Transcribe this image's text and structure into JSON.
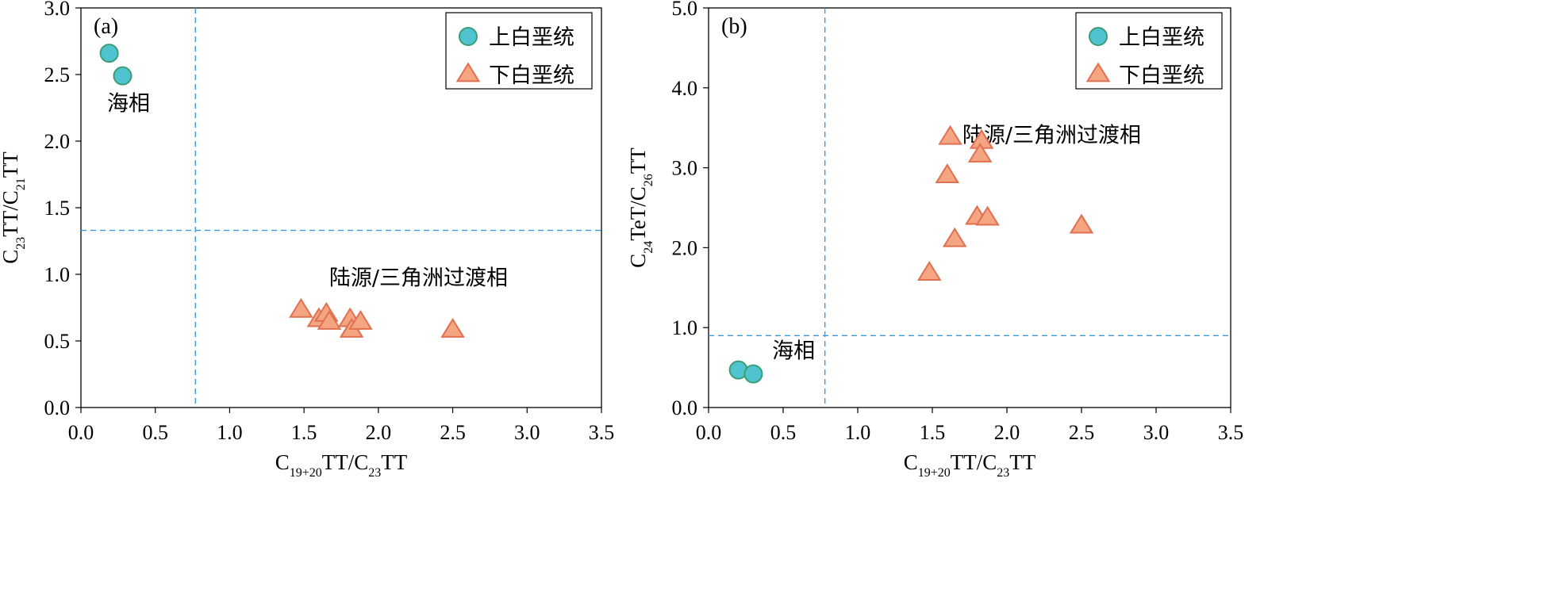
{
  "chart_data": [
    {
      "type": "scatter",
      "panel_label": "(a)",
      "xlabel": {
        "main": "C",
        "sub1": "19+20",
        "mid": "TT/C",
        "sub2": "23",
        "tail": "TT"
      },
      "ylabel": {
        "main": "C",
        "sub1": "23",
        "mid": "TT/C",
        "sub2": "21",
        "tail": "TT"
      },
      "xlim": [
        0,
        3.5
      ],
      "ylim": [
        0,
        3.0
      ],
      "xticks": [
        "0.0",
        "0.5",
        "1.0",
        "1.5",
        "2.0",
        "2.5",
        "3.0",
        "3.5"
      ],
      "yticks": [
        "0.0",
        "0.5",
        "1.0",
        "1.5",
        "2.0",
        "2.5",
        "3.0"
      ],
      "xtick_values": [
        0,
        0.5,
        1.0,
        1.5,
        2.0,
        2.5,
        3.0,
        3.5
      ],
      "ytick_values": [
        0,
        0.5,
        1.0,
        1.5,
        2.0,
        2.5,
        3.0
      ],
      "threshold_x": 0.77,
      "threshold_y": 1.33,
      "legend_position": "top-right",
      "series": [
        {
          "name": "上白垩统",
          "marker": "circle",
          "color": "#4fc3cf",
          "edge": "#3a9e74",
          "points": [
            [
              0.19,
              2.66
            ],
            [
              0.28,
              2.49
            ]
          ]
        },
        {
          "name": "下白垩统",
          "marker": "triangle",
          "color": "#f4a582",
          "edge": "#e07050",
          "points": [
            [
              1.48,
              0.73
            ],
            [
              1.6,
              0.66
            ],
            [
              1.65,
              0.7
            ],
            [
              1.67,
              0.64
            ],
            [
              1.81,
              0.66
            ],
            [
              1.82,
              0.58
            ],
            [
              1.88,
              0.64
            ],
            [
              2.5,
              0.58
            ]
          ]
        }
      ],
      "annotations": [
        {
          "text": "海相",
          "x": 0.32,
          "y": 2.23
        },
        {
          "text": "陆源/三角洲过渡相",
          "x": 2.27,
          "y": 0.92
        }
      ]
    },
    {
      "type": "scatter",
      "panel_label": "(b)",
      "xlabel": {
        "main": "C",
        "sub1": "19+20",
        "mid": "TT/C",
        "sub2": "23",
        "tail": "TT"
      },
      "ylabel": {
        "main": "C",
        "sub1": "24",
        "mid": "TeT/C",
        "sub2": "26",
        "tail": "TT"
      },
      "xlim": [
        0,
        3.5
      ],
      "ylim": [
        0,
        5.0
      ],
      "xticks": [
        "0.0",
        "0.5",
        "1.0",
        "1.5",
        "2.0",
        "2.5",
        "3.0",
        "3.5"
      ],
      "yticks": [
        "0.0",
        "1.0",
        "2.0",
        "3.0",
        "4.0",
        "5.0"
      ],
      "xtick_values": [
        0,
        0.5,
        1.0,
        1.5,
        2.0,
        2.5,
        3.0,
        3.5
      ],
      "ytick_values": [
        0,
        1.0,
        2.0,
        3.0,
        4.0,
        5.0
      ],
      "threshold_x": 0.78,
      "threshold_y": 0.9,
      "legend_position": "top-right",
      "series": [
        {
          "name": "上白垩统",
          "marker": "circle",
          "color": "#4fc3cf",
          "edge": "#3a9e74",
          "points": [
            [
              0.2,
              0.47
            ],
            [
              0.3,
              0.42
            ]
          ]
        },
        {
          "name": "下白垩统",
          "marker": "triangle",
          "color": "#f4a582",
          "edge": "#e07050",
          "points": [
            [
              1.62,
              3.38
            ],
            [
              1.83,
              3.33
            ],
            [
              1.82,
              3.16
            ],
            [
              1.6,
              2.9
            ],
            [
              1.8,
              2.38
            ],
            [
              1.87,
              2.37
            ],
            [
              1.65,
              2.1
            ],
            [
              2.5,
              2.27
            ],
            [
              1.48,
              1.68
            ]
          ]
        }
      ],
      "annotations": [
        {
          "text": "海相",
          "x": 0.57,
          "y": 0.62
        },
        {
          "text": "陆源/三角洲过渡相",
          "x": 2.3,
          "y": 3.32
        }
      ]
    }
  ]
}
